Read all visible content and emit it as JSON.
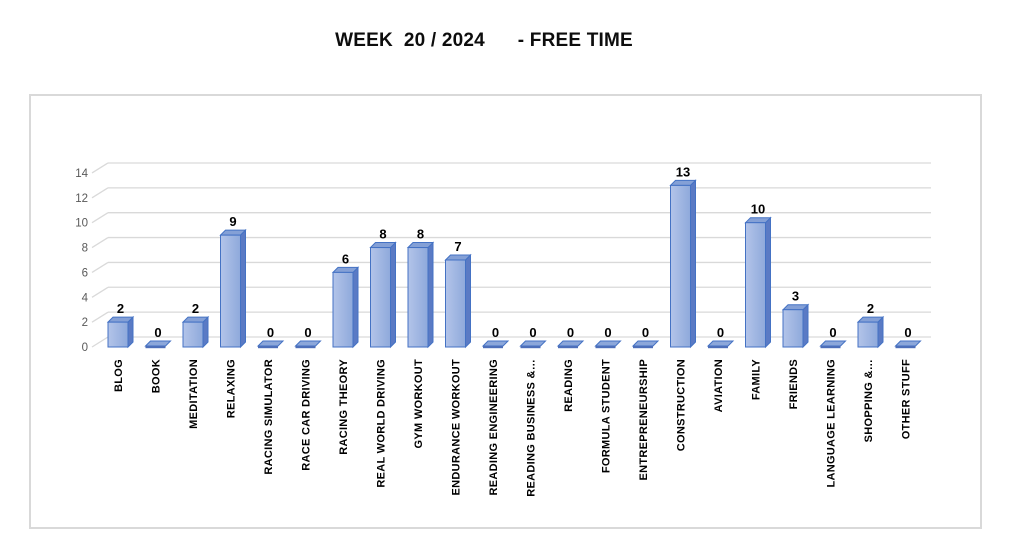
{
  "title": "WEEK  20 / 2024      - FREE TIME",
  "chart_data": {
    "type": "bar",
    "style": "3d-column",
    "title": "WEEK  20 / 2024      - FREE TIME",
    "categories": [
      "BLOG",
      "BOOK",
      "MEDITATION",
      "RELAXING",
      "RACING SIMULATOR",
      "RACE CAR DRIVING",
      "RACING THEORY",
      "REAL WORLD DRIVING",
      "GYM WORKOUT",
      "ENDURANCE WORKOUT",
      "READING ENGINEERING",
      "READING BUSINESS &…",
      "READING",
      "FORMULA STUDENT",
      "ENTREPRENEURSHIP",
      "CONSTRUCTION",
      "AVIATION",
      "FAMILY",
      "FRIENDS",
      "LANGUAGE LEARNING",
      "SHOPPING &…",
      "OTHER STUFF"
    ],
    "values": [
      2,
      0,
      2,
      9,
      0,
      0,
      6,
      8,
      8,
      7,
      0,
      0,
      0,
      0,
      0,
      13,
      0,
      10,
      3,
      0,
      2,
      0
    ],
    "data_labels": [
      2,
      0,
      2,
      9,
      0,
      0,
      6,
      8,
      8,
      7,
      0,
      0,
      0,
      0,
      0,
      13,
      0,
      10,
      3,
      0,
      2,
      0
    ],
    "xlabel": "",
    "ylabel": "",
    "ylim": [
      0,
      14
    ],
    "yticks": [
      0,
      2,
      4,
      6,
      8,
      10,
      12,
      14
    ],
    "grid": true,
    "legend": false,
    "colors": {
      "bar_front_light": "#b3c4e9",
      "bar_front_dark": "#8ea9db",
      "bar_top": "#84a0d6",
      "bar_side": "#5a7ac4",
      "bar_border": "#4472c4",
      "zero_marker_top": "#8ca7da",
      "zero_marker_edge": "#4d6fba",
      "gridline": "#d9d9d9",
      "axis_text": "#595959",
      "label_text": "#000000",
      "chart_border": "#d9d9d9",
      "background": "#ffffff"
    }
  }
}
